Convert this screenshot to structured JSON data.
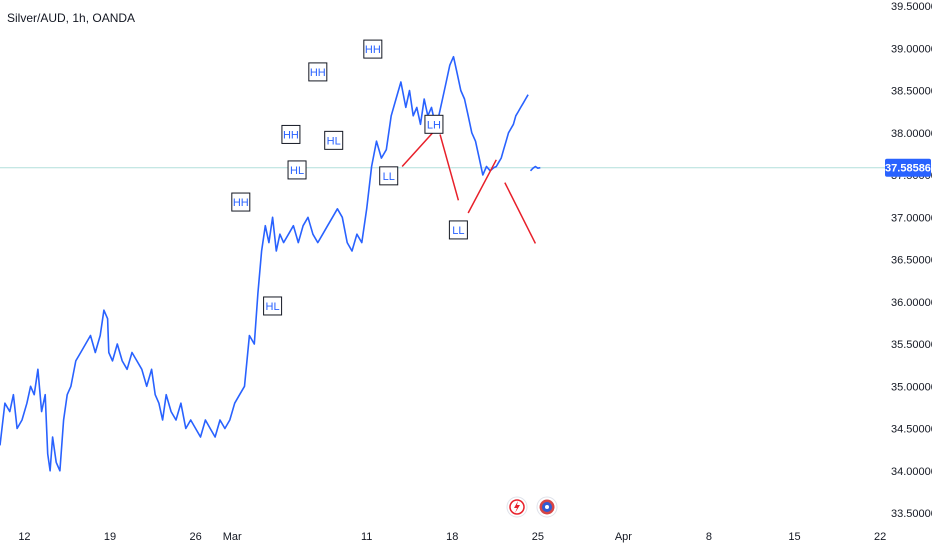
{
  "title": "Silver/AUD, 1h, OANDA",
  "current_price": "37.58586",
  "colors": {
    "price_line": "#2962ff",
    "projection": "#e8202a",
    "price_tag_bg": "#2962ff",
    "axis_text": "#131722",
    "crosshair": "#b2dfdb"
  },
  "icons": [
    "lightning-icon",
    "calendar-event-icon"
  ],
  "chart_data": {
    "type": "line",
    "title": "Silver/AUD, 1h, OANDA",
    "x_unit": "days",
    "x_ticks": [
      {
        "label": "12",
        "day": 12
      },
      {
        "label": "19",
        "day": 19
      },
      {
        "label": "26",
        "day": 26
      },
      {
        "label": "Mar",
        "day": 29
      },
      {
        "label": "11",
        "day": 40
      },
      {
        "label": "18",
        "day": 47
      },
      {
        "label": "25",
        "day": 54
      },
      {
        "label": "Apr",
        "day": 61
      },
      {
        "label": "8",
        "day": 68
      },
      {
        "label": "15",
        "day": 75
      },
      {
        "label": "22",
        "day": 82
      }
    ],
    "y_ticks": [
      "39.50000",
      "39.00000",
      "38.50000",
      "38.00000",
      "37.50000",
      "37.00000",
      "36.50000",
      "36.00000",
      "35.50000",
      "35.00000",
      "34.50000",
      "34.00000",
      "33.50000"
    ],
    "ylim": [
      33.5,
      39.5
    ],
    "xlim": [
      10.0,
      82.4
    ],
    "series": [
      {
        "x": [
          10.0,
          10.4,
          10.8,
          11.1,
          11.4,
          11.8,
          12.2,
          12.5,
          12.8,
          13.1,
          13.4,
          13.7,
          13.9,
          14.1,
          14.3,
          14.6,
          14.9,
          15.2,
          15.5,
          15.8,
          16.2,
          16.6,
          17.0,
          17.4,
          17.8,
          18.2,
          18.5,
          18.8,
          18.9,
          19.2,
          19.6,
          20.0,
          20.4,
          20.8,
          21.2,
          21.6,
          22.0,
          22.4,
          22.7,
          23.0,
          23.3,
          23.6,
          24.0,
          24.4,
          24.8,
          25.2,
          25.6,
          26.0,
          26.4,
          26.8,
          27.2,
          27.6,
          28.0,
          28.4,
          28.8,
          29.2,
          29.6,
          30.0,
          30.4,
          30.8,
          31.1,
          31.4,
          31.7,
          32.0,
          32.3,
          32.6,
          32.9,
          33.2,
          33.6,
          34.0,
          34.4,
          34.8,
          35.2,
          35.6,
          36.0,
          36.4,
          36.8,
          37.2,
          37.6,
          38.0,
          38.4,
          38.8,
          39.2,
          39.6,
          40.0,
          40.4,
          40.8,
          41.2,
          41.6,
          42.0,
          42.4,
          42.8,
          43.2,
          43.5,
          43.8,
          44.1,
          44.4,
          44.7,
          45.0,
          45.3,
          45.6,
          45.9,
          46.2,
          46.5,
          46.8,
          47.1,
          47.4,
          47.7,
          48.0,
          48.3,
          48.6,
          48.9,
          49.2,
          49.5,
          49.8,
          50.1,
          50.4,
          50.6,
          50.8,
          51.0,
          51.2,
          51.4,
          51.6,
          51.8,
          52.0,
          52.2,
          52.4,
          52.6,
          52.8,
          53.0,
          53.2
        ],
        "y": [
          34.3,
          34.8,
          34.7,
          34.9,
          34.5,
          34.6,
          34.8,
          35.0,
          34.9,
          35.2,
          34.7,
          34.9,
          34.2,
          34.0,
          34.4,
          34.1,
          34.0,
          34.6,
          34.9,
          35.0,
          35.3,
          35.4,
          35.5,
          35.6,
          35.4,
          35.6,
          35.9,
          35.8,
          35.4,
          35.3,
          35.5,
          35.3,
          35.2,
          35.4,
          35.3,
          35.2,
          35.0,
          35.2,
          34.9,
          34.8,
          34.6,
          34.9,
          34.7,
          34.6,
          34.8,
          34.5,
          34.6,
          34.5,
          34.4,
          34.6,
          34.5,
          34.4,
          34.6,
          34.5,
          34.6,
          34.8,
          34.9,
          35.0,
          35.6,
          35.5,
          36.1,
          36.6,
          36.9,
          36.7,
          37.0,
          36.6,
          36.8,
          36.7,
          36.8,
          36.9,
          36.7,
          36.9,
          37.0,
          36.8,
          36.7,
          36.8,
          36.9,
          37.0,
          37.1,
          37.0,
          36.7,
          36.6,
          36.8,
          36.7,
          37.1,
          37.6,
          37.9,
          37.7,
          37.8,
          38.2,
          38.4,
          38.6,
          38.3,
          38.5,
          38.2,
          38.3,
          38.1,
          38.4,
          38.2,
          38.3,
          38.1,
          38.2,
          38.4,
          38.6,
          38.8,
          38.9,
          38.7,
          38.5,
          38.4,
          38.2,
          38.0,
          37.9,
          37.7,
          37.5,
          37.6,
          37.55,
          37.58586,
          37.6,
          37.65,
          37.7,
          37.8,
          37.9,
          38.0,
          38.05,
          38.1,
          38.2,
          38.25,
          38.3,
          38.35,
          38.4,
          38.45
        ]
      },
      {
        "x": [
          53.4,
          53.6,
          53.8,
          54.0,
          54.2
        ],
        "y": [
          37.55,
          37.58,
          37.6,
          37.58,
          37.58586
        ]
      }
    ],
    "annotations": [
      {
        "label": "HH",
        "x": 29.7,
        "y": 37.18
      },
      {
        "label": "HL",
        "x": 32.3,
        "y": 35.95
      },
      {
        "label": "HH",
        "x": 33.8,
        "y": 37.98
      },
      {
        "label": "HL",
        "x": 34.3,
        "y": 37.56
      },
      {
        "label": "HH",
        "x": 36.0,
        "y": 38.72
      },
      {
        "label": "HL",
        "x": 37.3,
        "y": 37.91
      },
      {
        "label": "HH",
        "x": 40.5,
        "y": 38.99
      },
      {
        "label": "LL",
        "x": 41.8,
        "y": 37.49
      },
      {
        "label": "LH",
        "x": 45.5,
        "y": 38.1
      },
      {
        "label": "LL",
        "x": 47.5,
        "y": 36.85
      }
    ],
    "projection_segments": [
      {
        "x1": 42.9,
        "y1": 37.6,
        "x2": 45.4,
        "y2": 38.0
      },
      {
        "x1": 46.0,
        "y1": 37.98,
        "x2": 47.5,
        "y2": 37.2
      },
      {
        "x1": 48.3,
        "y1": 37.05,
        "x2": 50.6,
        "y2": 37.68
      },
      {
        "x1": 51.3,
        "y1": 37.41,
        "x2": 53.8,
        "y2": 36.69
      }
    ]
  }
}
